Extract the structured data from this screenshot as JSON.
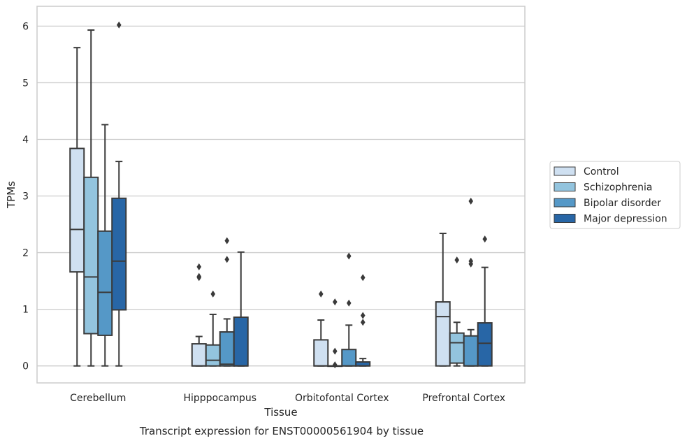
{
  "chart_data": {
    "type": "box",
    "caption": "Transcript expression for ENST00000561904 by tissue",
    "xlabel": "Tissue",
    "ylabel": "TPMs",
    "ylim": [
      -0.3,
      6.35
    ],
    "yticks": [
      0,
      1,
      2,
      3,
      4,
      5,
      6
    ],
    "grid": "horizontal",
    "legend_position": "right",
    "categories": [
      "Cerebellum",
      "Hipppocampus",
      "Orbitofontal Cortex",
      "Prefrontal Cortex"
    ],
    "series": [
      {
        "name": "Control",
        "color": "#cfe0f1",
        "boxes": [
          {
            "q1": 1.66,
            "median": 2.41,
            "q3": 3.84,
            "whislo": 0.0,
            "whishi": 5.62,
            "fliers": []
          },
          {
            "q1": 0.0,
            "median": 0.0,
            "q3": 0.39,
            "whislo": 0.0,
            "whishi": 0.52,
            "fliers": [
              1.56,
              1.58,
              1.75
            ]
          },
          {
            "q1": 0.0,
            "median": 0.0,
            "q3": 0.46,
            "whislo": 0.0,
            "whishi": 0.81,
            "fliers": [
              1.27
            ]
          },
          {
            "q1": 0.0,
            "median": 0.87,
            "q3": 1.13,
            "whislo": 0.0,
            "whishi": 2.34,
            "fliers": []
          }
        ]
      },
      {
        "name": "Schizophrenia",
        "color": "#93c4de",
        "boxes": [
          {
            "q1": 0.57,
            "median": 1.57,
            "q3": 3.33,
            "whislo": 0.0,
            "whishi": 5.93,
            "fliers": []
          },
          {
            "q1": 0.0,
            "median": 0.1,
            "q3": 0.37,
            "whislo": 0.0,
            "whishi": 0.91,
            "fliers": [
              1.27
            ]
          },
          {
            "q1": 0.0,
            "median": 0.0,
            "q3": 0.0,
            "whislo": 0.0,
            "whishi": 0.0,
            "fliers": [
              0.02,
              0.26,
              1.13
            ]
          },
          {
            "q1": 0.05,
            "median": 0.41,
            "q3": 0.58,
            "whislo": 0.0,
            "whishi": 0.77,
            "fliers": [
              1.87
            ]
          }
        ]
      },
      {
        "name": "Bipolar disorder",
        "color": "#5598c7",
        "boxes": [
          {
            "q1": 0.54,
            "median": 1.3,
            "q3": 2.38,
            "whislo": 0.0,
            "whishi": 4.26,
            "fliers": []
          },
          {
            "q1": 0.0,
            "median": 0.03,
            "q3": 0.6,
            "whislo": 0.0,
            "whishi": 0.83,
            "fliers": [
              1.88,
              2.21
            ]
          },
          {
            "q1": 0.0,
            "median": 0.0,
            "q3": 0.29,
            "whislo": 0.0,
            "whishi": 0.72,
            "fliers": [
              1.11,
              1.94
            ]
          },
          {
            "q1": 0.0,
            "median": 0.0,
            "q3": 0.53,
            "whislo": 0.0,
            "whishi": 0.64,
            "fliers": [
              1.8,
              1.85,
              2.91
            ]
          }
        ]
      },
      {
        "name": "Major depression",
        "color": "#2866a6",
        "boxes": [
          {
            "q1": 0.99,
            "median": 1.85,
            "q3": 2.96,
            "whislo": 0.0,
            "whishi": 3.61,
            "fliers": [
              6.02
            ]
          },
          {
            "q1": 0.0,
            "median": 0.0,
            "q3": 0.86,
            "whislo": 0.0,
            "whishi": 2.01,
            "fliers": []
          },
          {
            "q1": 0.0,
            "median": 0.0,
            "q3": 0.07,
            "whislo": 0.0,
            "whishi": 0.13,
            "fliers": [
              0.77,
              0.89,
              1.56
            ]
          },
          {
            "q1": 0.0,
            "median": 0.4,
            "q3": 0.76,
            "whislo": 0.0,
            "whishi": 1.74,
            "fliers": [
              2.24
            ]
          }
        ]
      }
    ]
  }
}
